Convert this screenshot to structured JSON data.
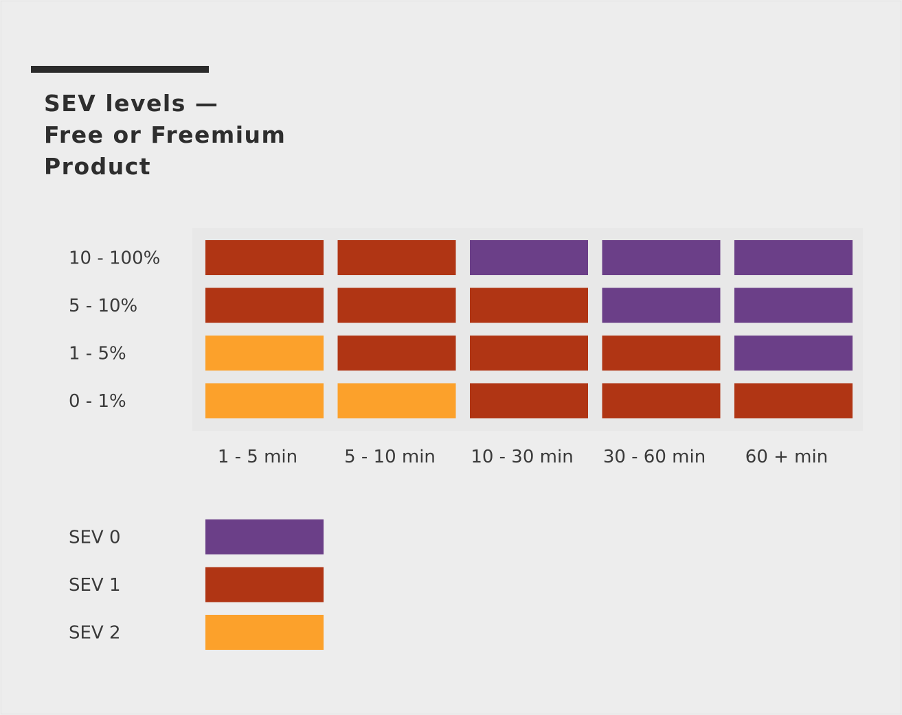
{
  "chart_data": {
    "type": "heatmap",
    "title_lines": [
      "SEV levels —",
      "Free or Freemium",
      "Product"
    ],
    "rows": [
      "10 - 100%",
      "5 - 10%",
      "1 - 5%",
      "0 - 1%"
    ],
    "columns": [
      "1 - 5 min",
      "5 - 10 min",
      "10 - 30 min",
      "30 - 60 min",
      "60 + min"
    ],
    "cells": [
      [
        1,
        1,
        0,
        0,
        0
      ],
      [
        1,
        1,
        1,
        0,
        0
      ],
      [
        2,
        1,
        1,
        1,
        0
      ],
      [
        2,
        2,
        1,
        1,
        1
      ]
    ],
    "legend": [
      {
        "label": "SEV 0",
        "level": 0
      },
      {
        "label": "SEV 1",
        "level": 1
      },
      {
        "label": "SEV 2",
        "level": 2
      }
    ],
    "colors": {
      "0": "#6b3f88",
      "1": "#b03514",
      "2": "#fca12b"
    }
  }
}
